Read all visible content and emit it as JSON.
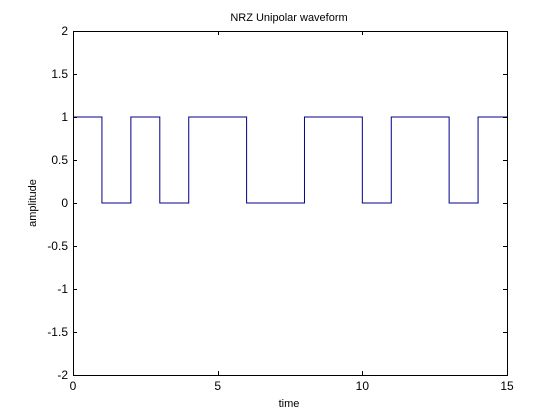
{
  "chart_data": {
    "type": "line",
    "title": "NRZ Unipolar waveform",
    "xlabel": "time",
    "ylabel": "amplitude",
    "xlim": [
      0,
      15
    ],
    "ylim": [
      -2,
      2
    ],
    "xticks": [
      0,
      5,
      10,
      15
    ],
    "xtick_labels": [
      "0",
      "5",
      "10",
      "15"
    ],
    "yticks": [
      -2,
      -1.5,
      -1,
      -0.5,
      0,
      0.5,
      1,
      1.5,
      2
    ],
    "ytick_labels": [
      "-2",
      "-1.5",
      "-1",
      "-0.5",
      "0",
      "0.5",
      "1",
      "1.5",
      "2"
    ],
    "grid": false,
    "line_style": "step",
    "series": [
      {
        "color": "#00008b",
        "x": [
          0,
          1,
          1,
          2,
          2,
          3,
          3,
          4,
          4,
          6,
          6,
          8,
          8,
          10,
          10,
          11,
          11,
          13,
          13,
          14,
          14,
          15
        ],
        "y": [
          1,
          1,
          0,
          0,
          1,
          1,
          0,
          0,
          1,
          1,
          0,
          0,
          1,
          1,
          0,
          0,
          1,
          1,
          0,
          0,
          1,
          1
        ]
      }
    ]
  }
}
